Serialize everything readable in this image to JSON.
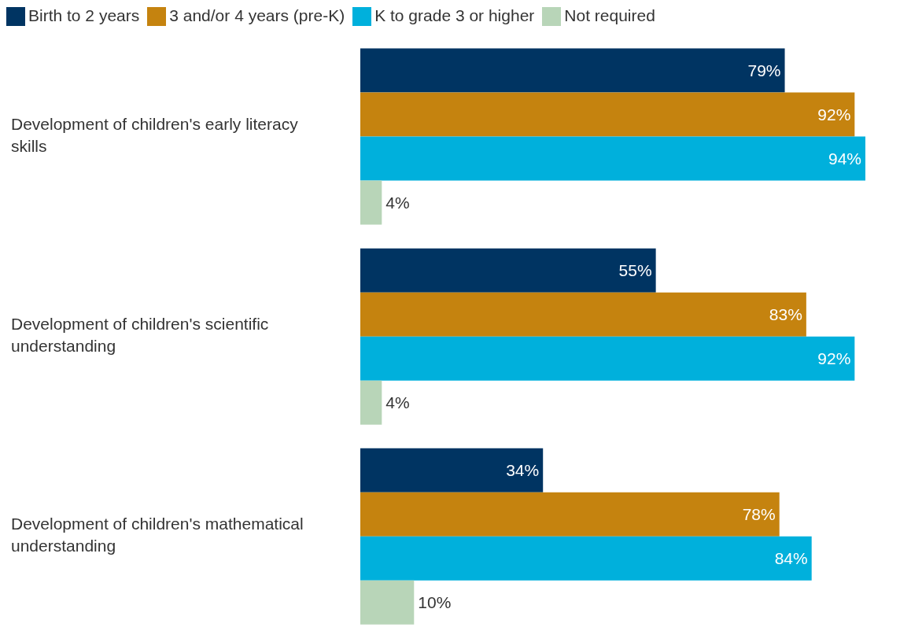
{
  "chart_data": {
    "type": "bar",
    "orientation": "horizontal",
    "categories": [
      "Development of children's early literacy skills",
      "Development of children's scientific understanding",
      "Development of children's mathematical understanding"
    ],
    "series": [
      {
        "name": "Birth to 2 years",
        "color": "#003462",
        "values": [
          79,
          55,
          34
        ],
        "value_labels": [
          "79%",
          "55%",
          "34%"
        ]
      },
      {
        "name": "3 and/or 4 years (pre-K)",
        "color": "#c5830f",
        "values": [
          92,
          83,
          78
        ],
        "value_labels": [
          "92%",
          "83%",
          "78%"
        ]
      },
      {
        "name": "K to grade 3 or higher",
        "color": "#00b0dc",
        "values": [
          94,
          92,
          84
        ],
        "value_labels": [
          "94%",
          "92%",
          "84%"
        ]
      },
      {
        "name": "Not required",
        "color": "#b8d5b8",
        "values": [
          4,
          4,
          10
        ],
        "value_labels": [
          "4%",
          "4%",
          "10%"
        ]
      }
    ],
    "legend": "top left",
    "grid": false
  }
}
